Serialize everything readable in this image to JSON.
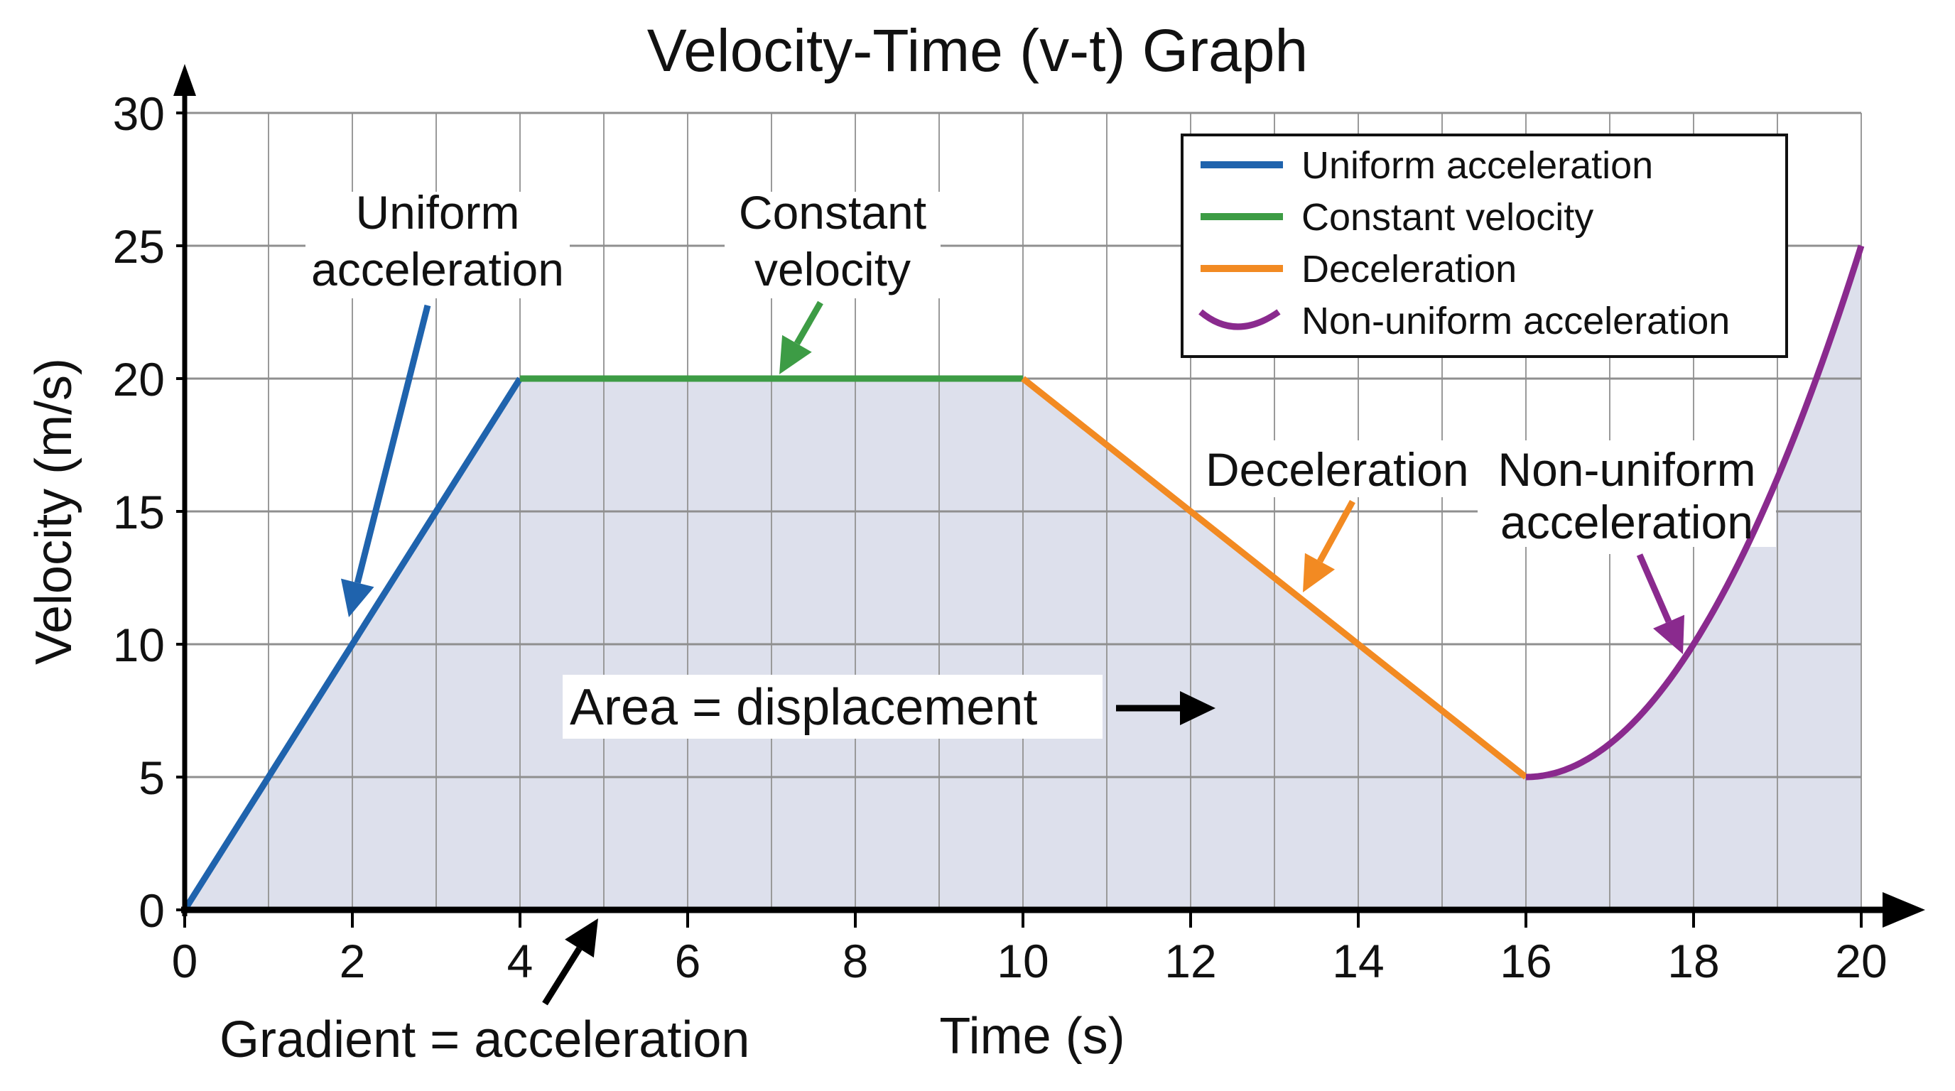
{
  "chart_data": {
    "type": "line",
    "title": "Velocity-Time (v-t) Graph",
    "xlabel": "Time (s)",
    "ylabel": "Velocity (m/s)",
    "xlim": [
      0,
      20
    ],
    "ylim": [
      0,
      30
    ],
    "x_ticks": [
      0,
      2,
      4,
      6,
      8,
      10,
      12,
      14,
      16,
      18,
      20
    ],
    "y_ticks": [
      0,
      5,
      10,
      15,
      20,
      25,
      30
    ],
    "grid": true,
    "area_fill": true,
    "legend_position": "top-right",
    "series": [
      {
        "name": "Uniform acceleration",
        "color": "#1f63ad",
        "x": [
          0,
          4
        ],
        "y": [
          0,
          20
        ]
      },
      {
        "name": "Constant velocity",
        "color": "#3d9c45",
        "x": [
          4,
          10
        ],
        "y": [
          20,
          20
        ]
      },
      {
        "name": "Deceleration",
        "color": "#f28a22",
        "x": [
          10,
          16
        ],
        "y": [
          20,
          5
        ]
      },
      {
        "name": "Non-uniform acceleration",
        "color": "#8a2a8e",
        "x": [
          16,
          17,
          18,
          19,
          20
        ],
        "y": [
          5,
          6.25,
          10,
          16.25,
          25
        ]
      }
    ],
    "annotations": {
      "uniform": [
        "Uniform",
        "acceleration"
      ],
      "constant": [
        "Constant",
        "velocity"
      ],
      "deceleration": "Deceleration",
      "nonuniform": [
        "Non-uniform",
        "acceleration"
      ],
      "area": "Area = displacement",
      "gradient": "Gradient = acceleration"
    },
    "fill_color": "#dde0ec"
  }
}
